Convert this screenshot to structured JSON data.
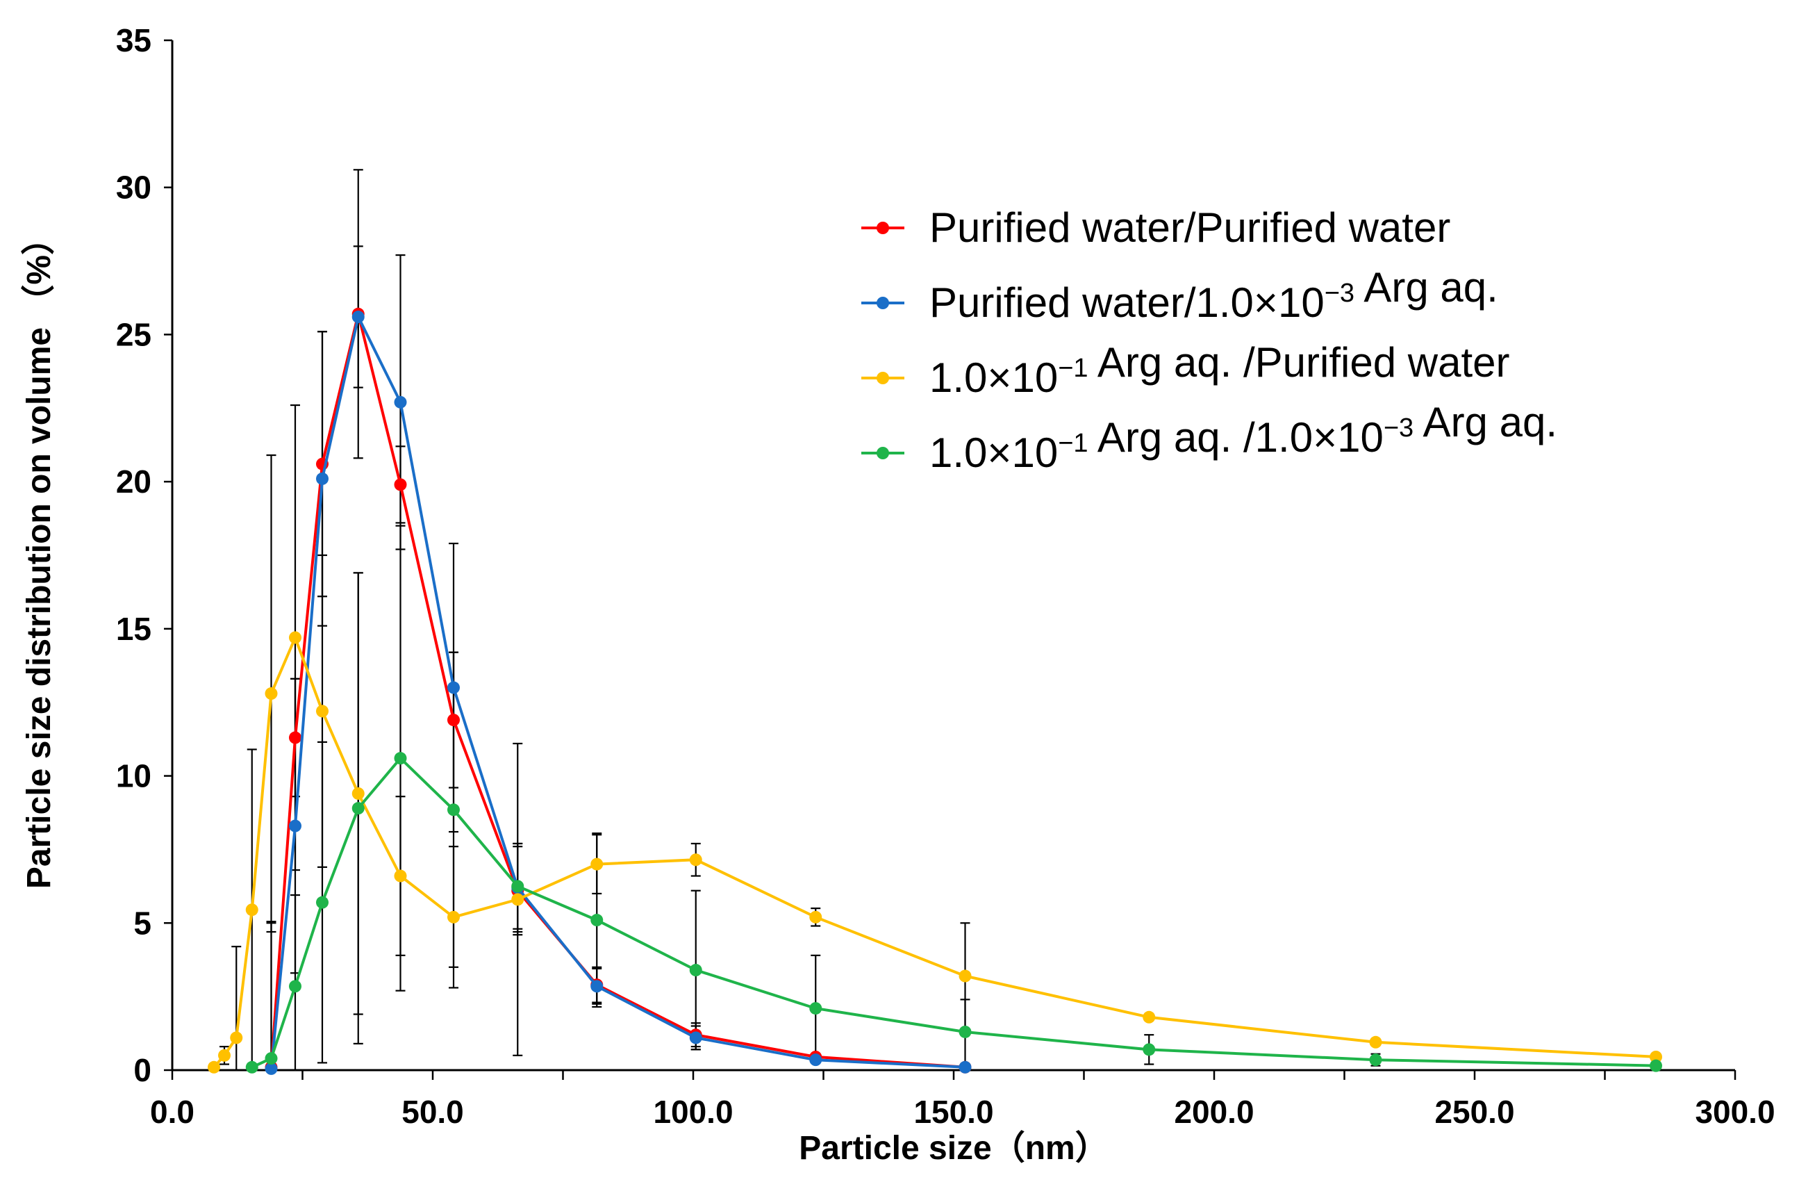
{
  "chart_data": {
    "type": "line",
    "title": "",
    "xlabel": "Particle size（nm）",
    "ylabel": "Particle size distribution on volume （%）",
    "xlim": [
      0,
      300
    ],
    "ylim": [
      0,
      35
    ],
    "xticks": [
      0,
      50,
      100,
      150,
      200,
      250,
      300
    ],
    "xtick_labels": [
      "0.0",
      "50.0",
      "100.0",
      "150.0",
      "200.0",
      "250.0",
      "300.0"
    ],
    "yticks": [
      0,
      5,
      10,
      15,
      20,
      25,
      30,
      35
    ],
    "ytick_labels": [
      "0",
      "5",
      "10",
      "15",
      "20",
      "25",
      "30",
      "35"
    ],
    "legend_position": "top-right",
    "series": [
      {
        "name": "Purified water/Purified water",
        "color": "#ff0000",
        "legend": [
          {
            "t": "Purified water/Purified water",
            "sup": false
          }
        ],
        "points": [
          {
            "x": 19.0,
            "y": 0.1,
            "err": 0.0
          },
          {
            "x": 23.6,
            "y": 11.3,
            "err": 2.0
          },
          {
            "x": 28.8,
            "y": 20.6,
            "err": 4.5
          },
          {
            "x": 35.7,
            "y": 25.7,
            "err": 4.9
          },
          {
            "x": 43.8,
            "y": 19.9,
            "err": 1.3
          },
          {
            "x": 54.0,
            "y": 11.9,
            "err": 2.3
          },
          {
            "x": 66.3,
            "y": 6.1,
            "err": 1.5
          },
          {
            "x": 81.5,
            "y": 2.9,
            "err": 0.6
          },
          {
            "x": 100.5,
            "y": 1.2,
            "err": 0.4
          },
          {
            "x": 123.5,
            "y": 0.45,
            "err": 0.1
          },
          {
            "x": 152.2,
            "y": 0.1,
            "err": 0.0
          }
        ]
      },
      {
        "name": "Purified water/1.0×10−3 Arg aq.",
        "color": "#1a6ec8",
        "legend": [
          {
            "t": "Purified water/1.0×10",
            "sup": false
          },
          {
            "t": "−3",
            "sup": true
          },
          {
            "t": " Arg aq.",
            "sup": false
          }
        ],
        "points": [
          {
            "x": 19.0,
            "y": 0.05,
            "err": 5.0
          },
          {
            "x": 23.6,
            "y": 8.3,
            "err": 5.0
          },
          {
            "x": 28.8,
            "y": 20.1,
            "err": 5.0
          },
          {
            "x": 35.7,
            "y": 25.6,
            "err": 2.4
          },
          {
            "x": 43.8,
            "y": 22.7,
            "err": 5.0
          },
          {
            "x": 54.0,
            "y": 13.0,
            "err": 4.9
          },
          {
            "x": 66.3,
            "y": 6.2,
            "err": 1.5
          },
          {
            "x": 81.5,
            "y": 2.85,
            "err": 0.6
          },
          {
            "x": 100.5,
            "y": 1.1,
            "err": 0.4
          },
          {
            "x": 123.5,
            "y": 0.35,
            "err": 0.1
          },
          {
            "x": 152.2,
            "y": 0.1,
            "err": 0.0
          }
        ]
      },
      {
        "name": "1.0×10−1 Arg aq. /Purified water",
        "color": "#ffc000",
        "legend": [
          {
            "t": "1.0×10",
            "sup": false
          },
          {
            "t": "−1",
            "sup": true
          },
          {
            "t": " Arg aq. /Purified water",
            "sup": false
          }
        ],
        "points": [
          {
            "x": 8.0,
            "y": 0.1,
            "err": 0.0
          },
          {
            "x": 10.0,
            "y": 0.5,
            "err": 0.3
          },
          {
            "x": 12.3,
            "y": 1.1,
            "err": 3.1
          },
          {
            "x": 15.3,
            "y": 5.45,
            "err": 5.45
          },
          {
            "x": 19.0,
            "y": 12.8,
            "err": 8.1
          },
          {
            "x": 23.6,
            "y": 14.7,
            "err": 7.9
          },
          {
            "x": 28.8,
            "y": 12.2,
            "err": 5.3
          },
          {
            "x": 35.7,
            "y": 9.4,
            "err": 7.5
          },
          {
            "x": 43.8,
            "y": 6.6,
            "err": 2.7
          },
          {
            "x": 54.0,
            "y": 5.2,
            "err": 2.4
          },
          {
            "x": 66.3,
            "y": 5.8,
            "err": 5.3
          },
          {
            "x": 81.5,
            "y": 7.0,
            "err": 1.0
          },
          {
            "x": 100.5,
            "y": 7.15,
            "err": 0.55
          },
          {
            "x": 123.5,
            "y": 5.2,
            "err": 0.3
          },
          {
            "x": 152.2,
            "y": 3.2,
            "err": 1.8
          },
          {
            "x": 187.5,
            "y": 1.8,
            "err": 0.0
          },
          {
            "x": 231.0,
            "y": 0.95,
            "err": 0.0
          },
          {
            "x": 284.8,
            "y": 0.45,
            "err": 0.0
          }
        ]
      },
      {
        "name": "1.0×10−1 Arg aq. /1.0×10−3 Arg aq.",
        "color": "#1fb44a",
        "legend": [
          {
            "t": "1.0×10",
            "sup": false
          },
          {
            "t": "−1",
            "sup": true
          },
          {
            "t": " Arg aq. /1.0×10",
            "sup": false
          },
          {
            "t": "−3",
            "sup": true
          },
          {
            "t": " Arg aq.",
            "sup": false
          }
        ],
        "points": [
          {
            "x": 15.3,
            "y": 0.1,
            "err": 0.0
          },
          {
            "x": 19.0,
            "y": 0.4,
            "err": 4.6
          },
          {
            "x": 23.6,
            "y": 2.85,
            "err": 3.1
          },
          {
            "x": 28.8,
            "y": 5.7,
            "err": 5.45
          },
          {
            "x": 35.7,
            "y": 8.9,
            "err": 8.0
          },
          {
            "x": 43.8,
            "y": 10.6,
            "err": 7.9
          },
          {
            "x": 54.0,
            "y": 8.85,
            "err": 5.35
          },
          {
            "x": 66.3,
            "y": 6.25,
            "err": 1.45
          },
          {
            "x": 81.5,
            "y": 5.1,
            "err": 2.95
          },
          {
            "x": 100.5,
            "y": 3.4,
            "err": 2.7
          },
          {
            "x": 123.5,
            "y": 2.1,
            "err": 1.8
          },
          {
            "x": 152.2,
            "y": 1.3,
            "err": 1.1
          },
          {
            "x": 187.5,
            "y": 0.7,
            "err": 0.5
          },
          {
            "x": 231.0,
            "y": 0.35,
            "err": 0.2
          },
          {
            "x": 284.8,
            "y": 0.15,
            "err": 0.0
          }
        ]
      }
    ]
  }
}
